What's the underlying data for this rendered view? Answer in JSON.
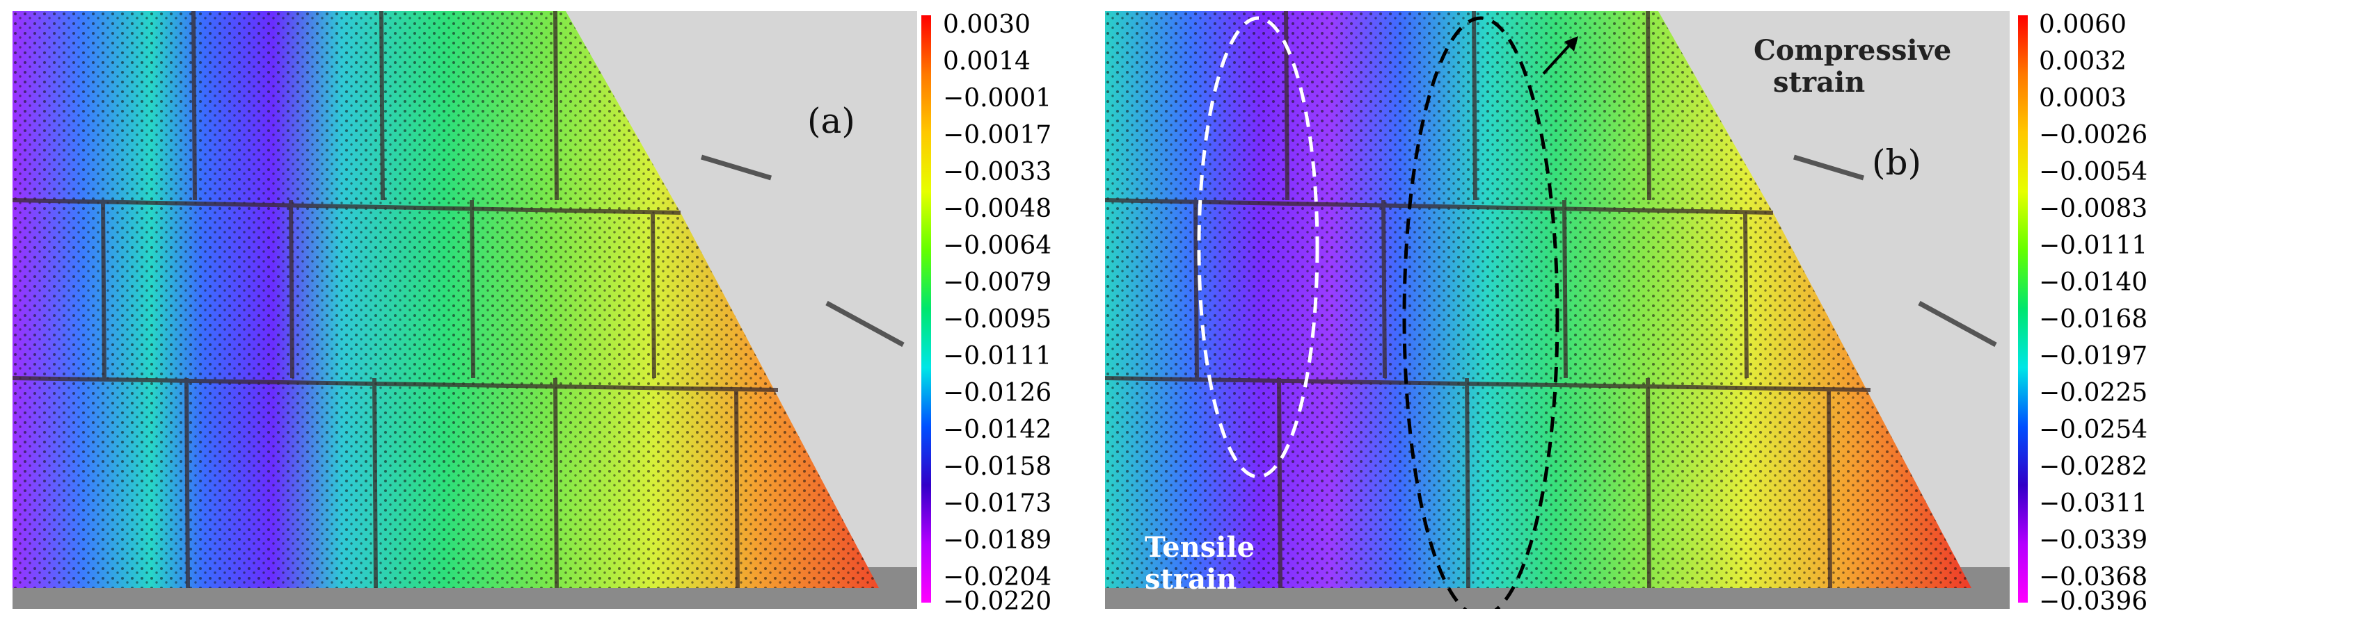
{
  "panels": [
    {
      "tag": "(a)",
      "colorbar_colors": [
        "#ff0000",
        "#ff7800",
        "#ffc800",
        "#e6ff00",
        "#64ff00",
        "#00e66e",
        "#00e6e6",
        "#0050ff",
        "#3200c8",
        "#b400ff",
        "#ff00ff"
      ],
      "scale": [
        "0.0030",
        "0.0014",
        "−0.0001",
        "−0.0017",
        "−0.0033",
        "−0.0048",
        "−0.0064",
        "−0.0079",
        "−0.0095",
        "−0.0111",
        "−0.0126",
        "−0.0142",
        "−0.0158",
        "−0.0173",
        "−0.0189",
        "−0.0204",
        "−0.0220"
      ]
    },
    {
      "tag": "(b)",
      "colorbar_colors": [
        "#ff0000",
        "#ff7800",
        "#ffc800",
        "#e6ff00",
        "#64ff00",
        "#00e66e",
        "#00e6e6",
        "#0050ff",
        "#3200c8",
        "#b400ff",
        "#ff00ff"
      ],
      "scale": [
        "0.0060",
        "0.0032",
        "0.0003",
        "−0.0026",
        "−0.0054",
        "−0.0083",
        "−0.0111",
        "−0.0140",
        "−0.0168",
        "−0.0197",
        "−0.0225",
        "−0.0254",
        "−0.0282",
        "−0.0311",
        "−0.0339",
        "−0.0368",
        "−0.0396"
      ]
    }
  ],
  "annotations": {
    "compressive_line1": "Compressive",
    "compressive_line2": "strain",
    "tensile_line1": "Tensile",
    "tensile_line2": "strain"
  }
}
